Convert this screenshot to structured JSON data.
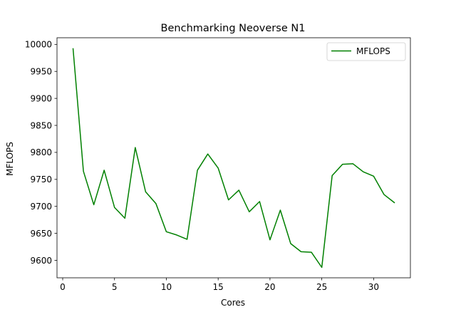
{
  "chart_data": {
    "type": "line",
    "title": "Benchmarking Neoverse N1",
    "xlabel": "Cores",
    "ylabel": "MFLOPS",
    "xlim": [
      -0.55,
      33.55
    ],
    "ylim": [
      9567.7,
      10012.3
    ],
    "xticks": [
      0,
      5,
      10,
      15,
      20,
      25,
      30
    ],
    "yticks": [
      9600,
      9650,
      9700,
      9750,
      9800,
      9850,
      9900,
      9950,
      10000
    ],
    "grid": false,
    "legend_position": "upper right",
    "series": [
      {
        "name": " MFLOPS",
        "color": "#008000",
        "x": [
          1,
          2,
          3,
          4,
          5,
          6,
          7,
          8,
          9,
          10,
          11,
          12,
          13,
          14,
          15,
          16,
          17,
          18,
          19,
          20,
          21,
          22,
          23,
          24,
          25,
          26,
          27,
          28,
          29,
          30,
          31,
          32
        ],
        "values": [
          9992,
          9765,
          9703,
          9767,
          9698,
          9678,
          9809,
          9727,
          9705,
          9653,
          9647,
          9639,
          9767,
          9797,
          9771,
          9712,
          9730,
          9690,
          9709,
          9638,
          9693,
          9631,
          9616,
          9615,
          9587,
          9757,
          9778,
          9779,
          9764,
          9756,
          9722,
          9707
        ]
      }
    ]
  }
}
